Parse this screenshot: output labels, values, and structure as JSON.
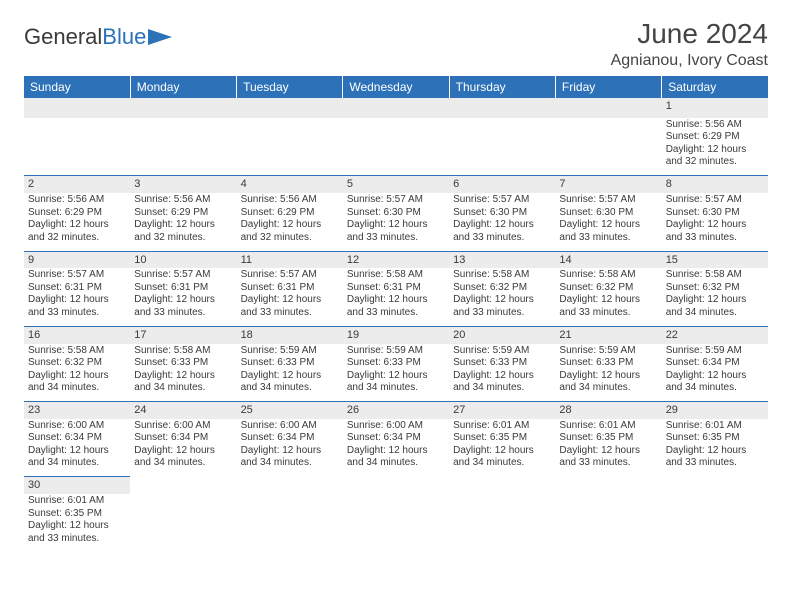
{
  "logo": {
    "text_a": "General",
    "text_b": "Blue"
  },
  "title": "June 2024",
  "location": "Agnianou, Ivory Coast",
  "colors": {
    "header_bg": "#2d71b8",
    "band_bg": "#ececec",
    "text": "#3a3a3a"
  },
  "columns": [
    "Sunday",
    "Monday",
    "Tuesday",
    "Wednesday",
    "Thursday",
    "Friday",
    "Saturday"
  ],
  "weeks": [
    [
      null,
      null,
      null,
      null,
      null,
      null,
      {
        "n": "1",
        "r": "5:56 AM",
        "s": "6:29 PM",
        "d": "12 hours and 32 minutes."
      }
    ],
    [
      {
        "n": "2",
        "r": "5:56 AM",
        "s": "6:29 PM",
        "d": "12 hours and 32 minutes."
      },
      {
        "n": "3",
        "r": "5:56 AM",
        "s": "6:29 PM",
        "d": "12 hours and 32 minutes."
      },
      {
        "n": "4",
        "r": "5:56 AM",
        "s": "6:29 PM",
        "d": "12 hours and 32 minutes."
      },
      {
        "n": "5",
        "r": "5:57 AM",
        "s": "6:30 PM",
        "d": "12 hours and 33 minutes."
      },
      {
        "n": "6",
        "r": "5:57 AM",
        "s": "6:30 PM",
        "d": "12 hours and 33 minutes."
      },
      {
        "n": "7",
        "r": "5:57 AM",
        "s": "6:30 PM",
        "d": "12 hours and 33 minutes."
      },
      {
        "n": "8",
        "r": "5:57 AM",
        "s": "6:30 PM",
        "d": "12 hours and 33 minutes."
      }
    ],
    [
      {
        "n": "9",
        "r": "5:57 AM",
        "s": "6:31 PM",
        "d": "12 hours and 33 minutes."
      },
      {
        "n": "10",
        "r": "5:57 AM",
        "s": "6:31 PM",
        "d": "12 hours and 33 minutes."
      },
      {
        "n": "11",
        "r": "5:57 AM",
        "s": "6:31 PM",
        "d": "12 hours and 33 minutes."
      },
      {
        "n": "12",
        "r": "5:58 AM",
        "s": "6:31 PM",
        "d": "12 hours and 33 minutes."
      },
      {
        "n": "13",
        "r": "5:58 AM",
        "s": "6:32 PM",
        "d": "12 hours and 33 minutes."
      },
      {
        "n": "14",
        "r": "5:58 AM",
        "s": "6:32 PM",
        "d": "12 hours and 33 minutes."
      },
      {
        "n": "15",
        "r": "5:58 AM",
        "s": "6:32 PM",
        "d": "12 hours and 34 minutes."
      }
    ],
    [
      {
        "n": "16",
        "r": "5:58 AM",
        "s": "6:32 PM",
        "d": "12 hours and 34 minutes."
      },
      {
        "n": "17",
        "r": "5:58 AM",
        "s": "6:33 PM",
        "d": "12 hours and 34 minutes."
      },
      {
        "n": "18",
        "r": "5:59 AM",
        "s": "6:33 PM",
        "d": "12 hours and 34 minutes."
      },
      {
        "n": "19",
        "r": "5:59 AM",
        "s": "6:33 PM",
        "d": "12 hours and 34 minutes."
      },
      {
        "n": "20",
        "r": "5:59 AM",
        "s": "6:33 PM",
        "d": "12 hours and 34 minutes."
      },
      {
        "n": "21",
        "r": "5:59 AM",
        "s": "6:33 PM",
        "d": "12 hours and 34 minutes."
      },
      {
        "n": "22",
        "r": "5:59 AM",
        "s": "6:34 PM",
        "d": "12 hours and 34 minutes."
      }
    ],
    [
      {
        "n": "23",
        "r": "6:00 AM",
        "s": "6:34 PM",
        "d": "12 hours and 34 minutes."
      },
      {
        "n": "24",
        "r": "6:00 AM",
        "s": "6:34 PM",
        "d": "12 hours and 34 minutes."
      },
      {
        "n": "25",
        "r": "6:00 AM",
        "s": "6:34 PM",
        "d": "12 hours and 34 minutes."
      },
      {
        "n": "26",
        "r": "6:00 AM",
        "s": "6:34 PM",
        "d": "12 hours and 34 minutes."
      },
      {
        "n": "27",
        "r": "6:01 AM",
        "s": "6:35 PM",
        "d": "12 hours and 34 minutes."
      },
      {
        "n": "28",
        "r": "6:01 AM",
        "s": "6:35 PM",
        "d": "12 hours and 33 minutes."
      },
      {
        "n": "29",
        "r": "6:01 AM",
        "s": "6:35 PM",
        "d": "12 hours and 33 minutes."
      }
    ],
    [
      {
        "n": "30",
        "r": "6:01 AM",
        "s": "6:35 PM",
        "d": "12 hours and 33 minutes."
      },
      null,
      null,
      null,
      null,
      null,
      null
    ]
  ],
  "labels": {
    "sunrise": "Sunrise:",
    "sunset": "Sunset:",
    "daylight": "Daylight:"
  }
}
